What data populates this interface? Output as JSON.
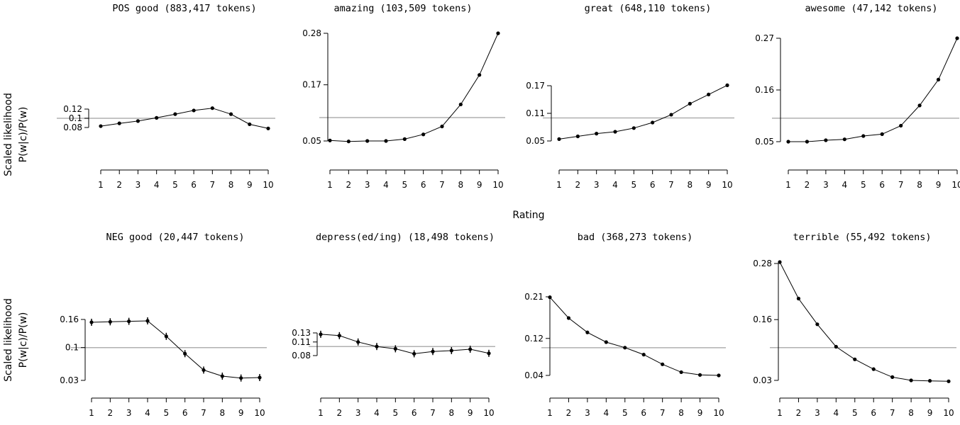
{
  "shared": {
    "xlabel": "Rating",
    "ylabel_line1": "Scaled likelihood",
    "ylabel_line2": "P(w|c)/P(w)"
  },
  "chart_data": [
    {
      "type": "line",
      "title": "POS good (883,417 tokens)",
      "x": [
        1,
        2,
        3,
        4,
        5,
        6,
        7,
        8,
        9,
        10
      ],
      "y": [
        0.083,
        0.089,
        0.094,
        0.101,
        0.109,
        0.117,
        0.122,
        0.109,
        0.087,
        0.078
      ],
      "yticks": [
        0.08,
        0.1,
        0.12
      ],
      "reference_line": 0.1,
      "error_bars": false
    },
    {
      "type": "line",
      "title": "amazing (103,509 tokens)",
      "x": [
        1,
        2,
        3,
        4,
        5,
        6,
        7,
        8,
        9,
        10
      ],
      "y": [
        0.051,
        0.049,
        0.05,
        0.05,
        0.054,
        0.064,
        0.081,
        0.128,
        0.191,
        0.28
      ],
      "yticks": [
        0.05,
        0.17,
        0.28
      ],
      "reference_line": 0.1,
      "error_bars": false
    },
    {
      "type": "line",
      "title": "great (648,110 tokens)",
      "x": [
        1,
        2,
        3,
        4,
        5,
        6,
        7,
        8,
        9,
        10
      ],
      "y": [
        0.054,
        0.06,
        0.066,
        0.07,
        0.078,
        0.09,
        0.107,
        0.131,
        0.151,
        0.171
      ],
      "yticks": [
        0.05,
        0.11,
        0.17
      ],
      "reference_line": 0.1,
      "error_bars": false
    },
    {
      "type": "line",
      "title": "awesome (47,142 tokens)",
      "x": [
        1,
        2,
        3,
        4,
        5,
        6,
        7,
        8,
        9,
        10
      ],
      "y": [
        0.05,
        0.05,
        0.053,
        0.055,
        0.062,
        0.066,
        0.084,
        0.127,
        0.182,
        0.27
      ],
      "yticks": [
        0.05,
        0.16,
        0.27
      ],
      "reference_line": 0.1,
      "error_bars": false
    },
    {
      "type": "line",
      "title": "NEG good (20,447 tokens)",
      "x": [
        1,
        2,
        3,
        4,
        5,
        6,
        7,
        8,
        9,
        10
      ],
      "y": [
        0.154,
        0.155,
        0.156,
        0.157,
        0.124,
        0.087,
        0.052,
        0.039,
        0.035,
        0.036
      ],
      "yticks": [
        0.03,
        0.1,
        0.16
      ],
      "reference_line": 0.1,
      "error_bars": true
    },
    {
      "type": "line",
      "title": "depress(ed/ing) (18,498 tokens)",
      "x": [
        1,
        2,
        3,
        4,
        5,
        6,
        7,
        8,
        9,
        10
      ],
      "y": [
        0.127,
        0.124,
        0.11,
        0.1,
        0.095,
        0.084,
        0.089,
        0.091,
        0.094,
        0.085
      ],
      "yticks": [
        0.08,
        0.11,
        0.13
      ],
      "reference_line": 0.1,
      "error_bars": true
    },
    {
      "type": "line",
      "title": "bad (368,273 tokens)",
      "x": [
        1,
        2,
        3,
        4,
        5,
        6,
        7,
        8,
        9,
        10
      ],
      "y": [
        0.209,
        0.164,
        0.133,
        0.112,
        0.1,
        0.085,
        0.064,
        0.047,
        0.041,
        0.04
      ],
      "yticks": [
        0.04,
        0.12,
        0.21
      ],
      "reference_line": 0.1,
      "error_bars": false
    },
    {
      "type": "line",
      "title": "terrible (55,492 tokens)",
      "x": [
        1,
        2,
        3,
        4,
        5,
        6,
        7,
        8,
        9,
        10
      ],
      "y": [
        0.283,
        0.205,
        0.15,
        0.102,
        0.075,
        0.054,
        0.037,
        0.03,
        0.029,
        0.028
      ],
      "yticks": [
        0.03,
        0.16,
        0.28
      ],
      "reference_line": 0.1,
      "error_bars": false
    }
  ]
}
